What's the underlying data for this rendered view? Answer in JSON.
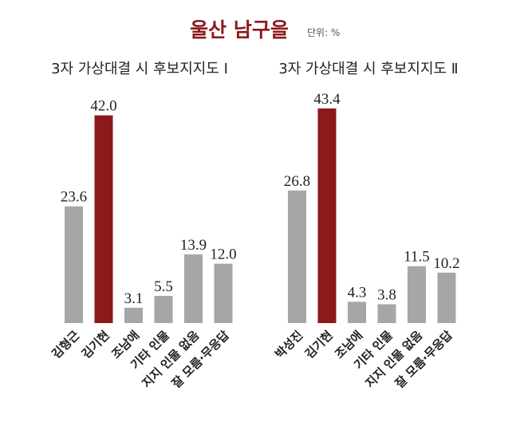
{
  "title": "울산 남구을",
  "unit": "단위: %",
  "chart_data": [
    {
      "type": "bar",
      "title": "3자 가상대결 시 후보지지도 Ⅰ",
      "categories": [
        "김형근",
        "김기현",
        "조남애",
        "기타 인물",
        "지지 인물 없음",
        "잘 모름·무응답"
      ],
      "values": [
        23.6,
        42.0,
        3.1,
        5.5,
        13.9,
        12.0
      ],
      "value_labels": [
        "23.6",
        "42.0",
        "3.1",
        "5.5",
        "13.9",
        "12.0"
      ],
      "colors": [
        "#a6a6a6",
        "#8b1a1a",
        "#a6a6a6",
        "#a6a6a6",
        "#a6a6a6",
        "#a6a6a6"
      ]
    },
    {
      "type": "bar",
      "title": "3자 가상대결 시 후보지지도 Ⅱ",
      "categories": [
        "박성진",
        "김기현",
        "조남애",
        "기타 인물",
        "지지 인물 없음",
        "잘 모름·무응답"
      ],
      "values": [
        26.8,
        43.4,
        4.3,
        3.8,
        11.5,
        10.2
      ],
      "value_labels": [
        "26.8",
        "43.4",
        "4.3",
        "3.8",
        "11.5",
        "10.2"
      ],
      "colors": [
        "#a6a6a6",
        "#8b1a1a",
        "#a6a6a6",
        "#a6a6a6",
        "#a6a6a6",
        "#a6a6a6"
      ]
    }
  ]
}
